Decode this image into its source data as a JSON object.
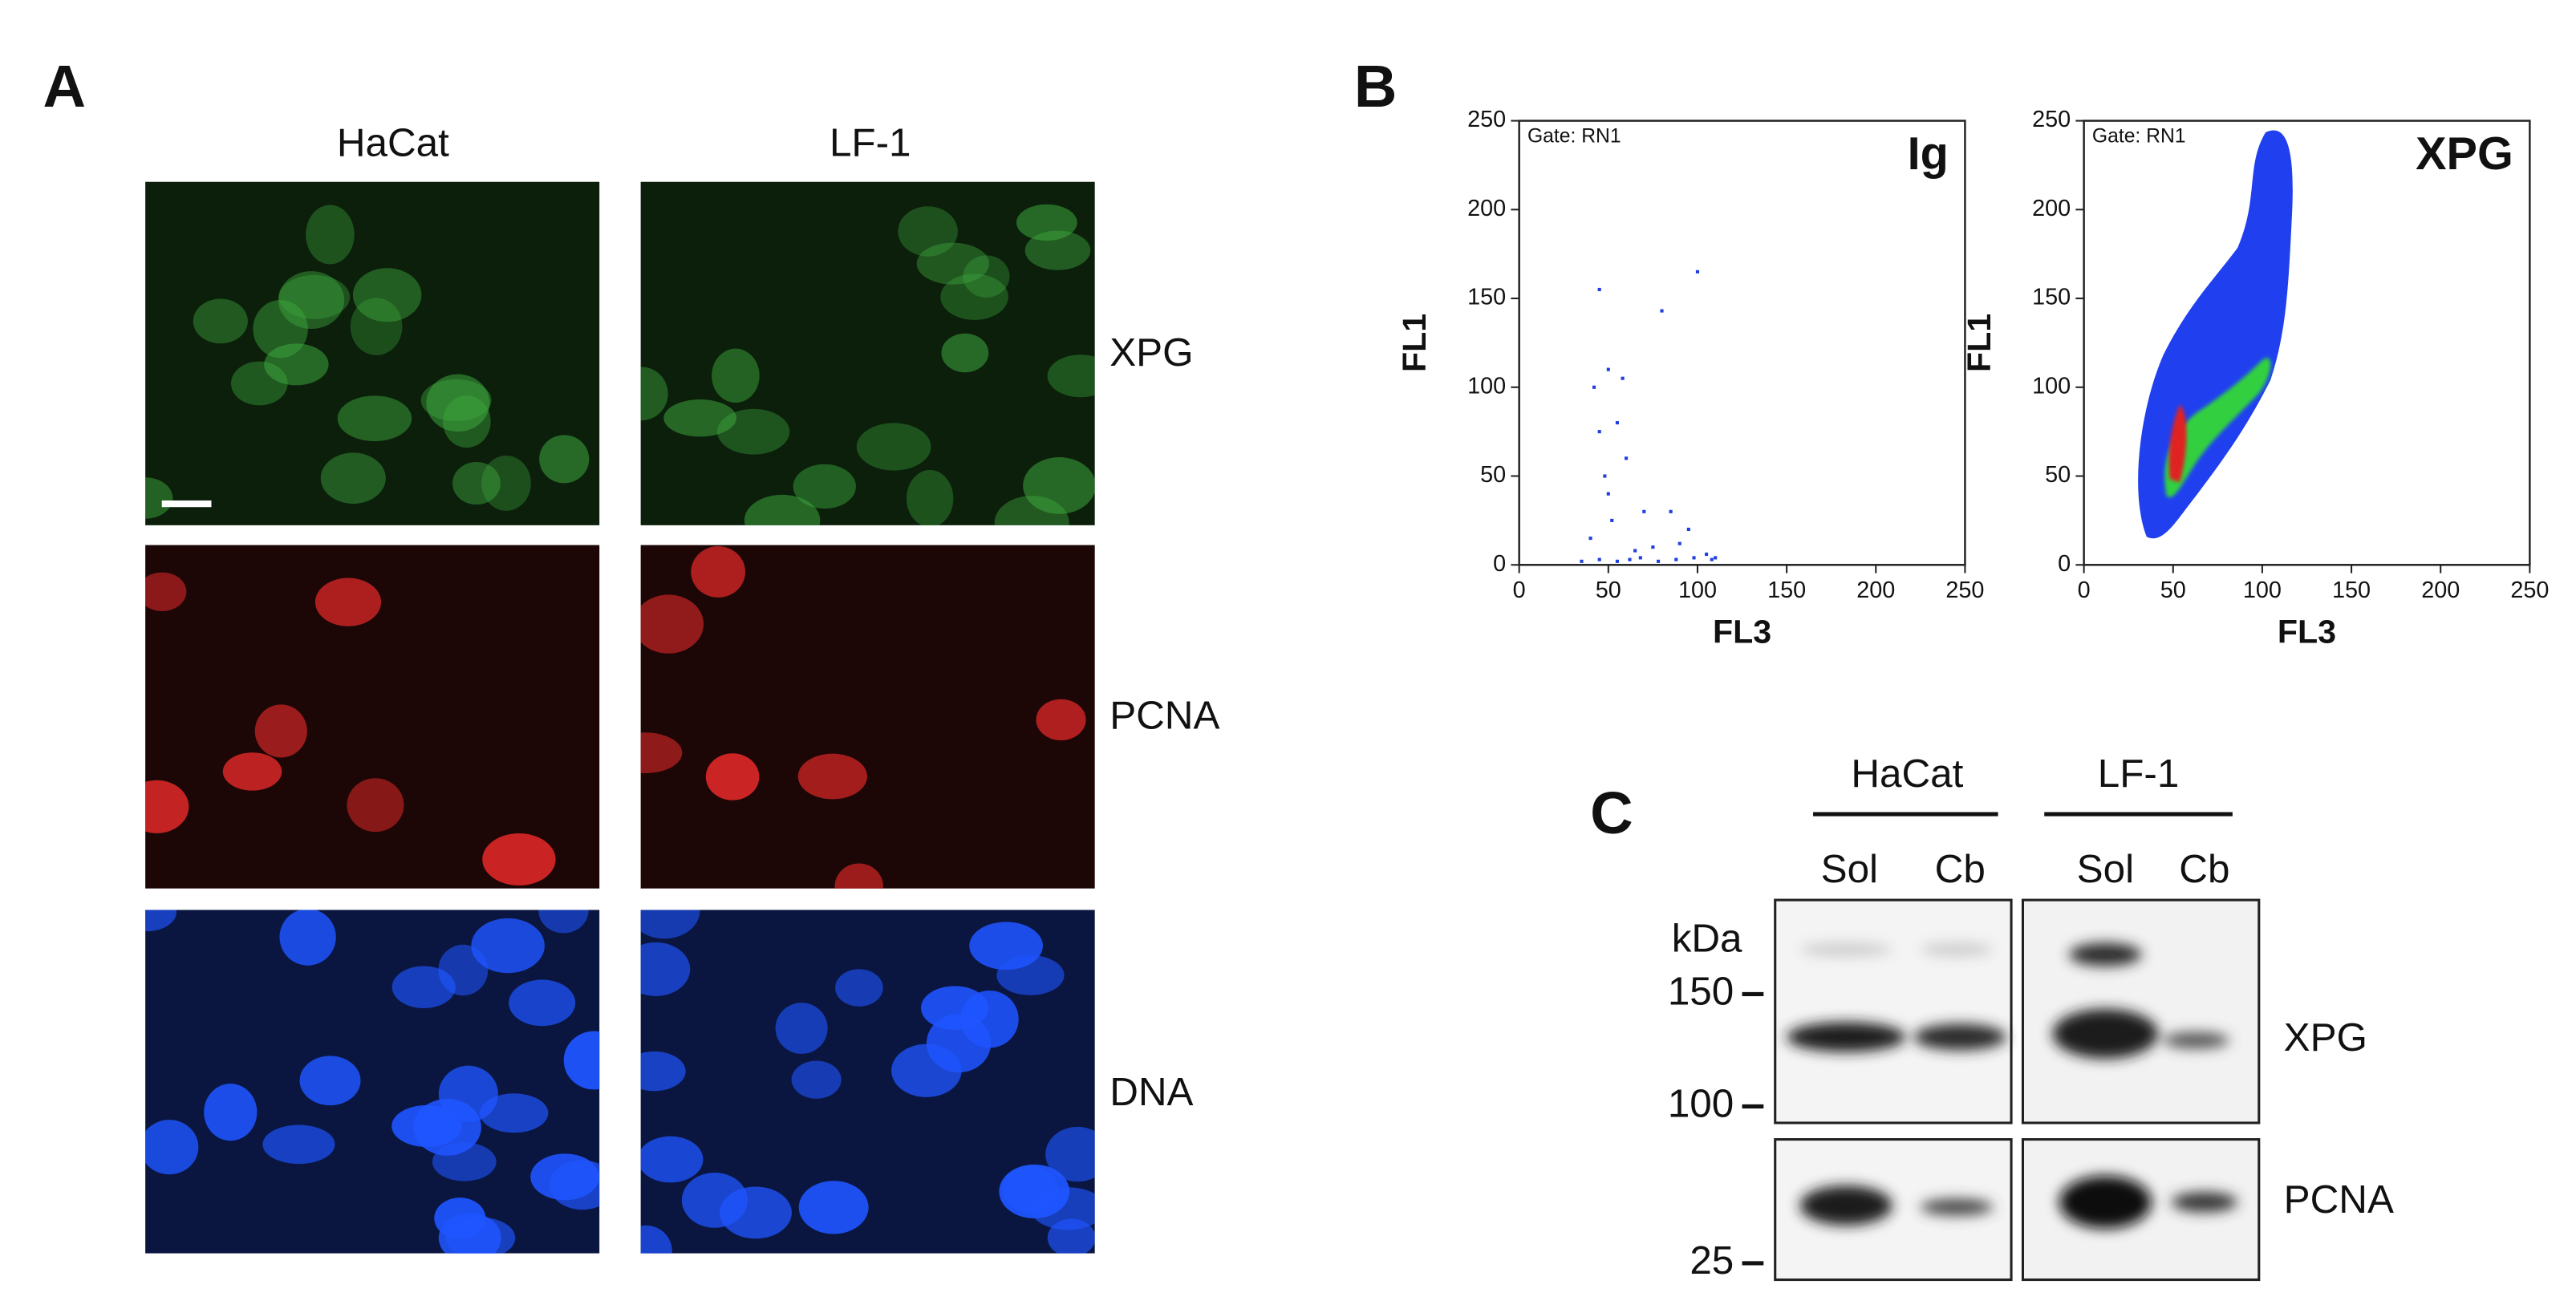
{
  "panel_a": {
    "label": "A",
    "columns": [
      "HaCat",
      "LF-1"
    ],
    "rows": [
      "XPG",
      "PCNA",
      "DNA"
    ]
  },
  "panel_b": {
    "label": "B",
    "plots": [
      {
        "title": "Ig",
        "gate": "Gate: RN1",
        "x_label": "FL3",
        "y_label": "FL1",
        "xlim": [
          0,
          250
        ],
        "ylim": [
          0,
          250
        ],
        "xticks": [
          0,
          50,
          100,
          150,
          200,
          250
        ],
        "yticks": [
          0,
          50,
          100,
          150,
          200,
          250
        ],
        "color": "#1f3fe0",
        "points": {
          "x": [
            45,
            100,
            80,
            50,
            42,
            58,
            45,
            55,
            48,
            60,
            70,
            85,
            95,
            40,
            52,
            65,
            75,
            90,
            105,
            110,
            35,
            45,
            55,
            62,
            68,
            78,
            88,
            98,
            108,
            50
          ],
          "y": [
            155,
            165,
            143,
            110,
            100,
            105,
            75,
            80,
            50,
            60,
            30,
            30,
            20,
            15,
            25,
            8,
            10,
            12,
            6,
            4,
            2,
            3,
            2,
            3,
            4,
            2,
            3,
            4,
            3,
            40
          ]
        }
      },
      {
        "title": "XPG",
        "gate": "Gate: RN1",
        "x_label": "FL3",
        "y_label": "FL1",
        "xlim": [
          0,
          250
        ],
        "ylim": [
          0,
          250
        ],
        "xticks": [
          0,
          50,
          100,
          150,
          200,
          250
        ],
        "yticks": [
          0,
          50,
          100,
          150,
          200,
          250
        ]
      }
    ]
  },
  "panel_c": {
    "label": "C",
    "groups": [
      "HaCat",
      "LF-1"
    ],
    "lanes": [
      "Sol",
      "Cb",
      "Sol",
      "Cb"
    ],
    "unit": "kDa",
    "markers": [
      150,
      100,
      25
    ],
    "bands": [
      "XPG",
      "PCNA"
    ]
  }
}
